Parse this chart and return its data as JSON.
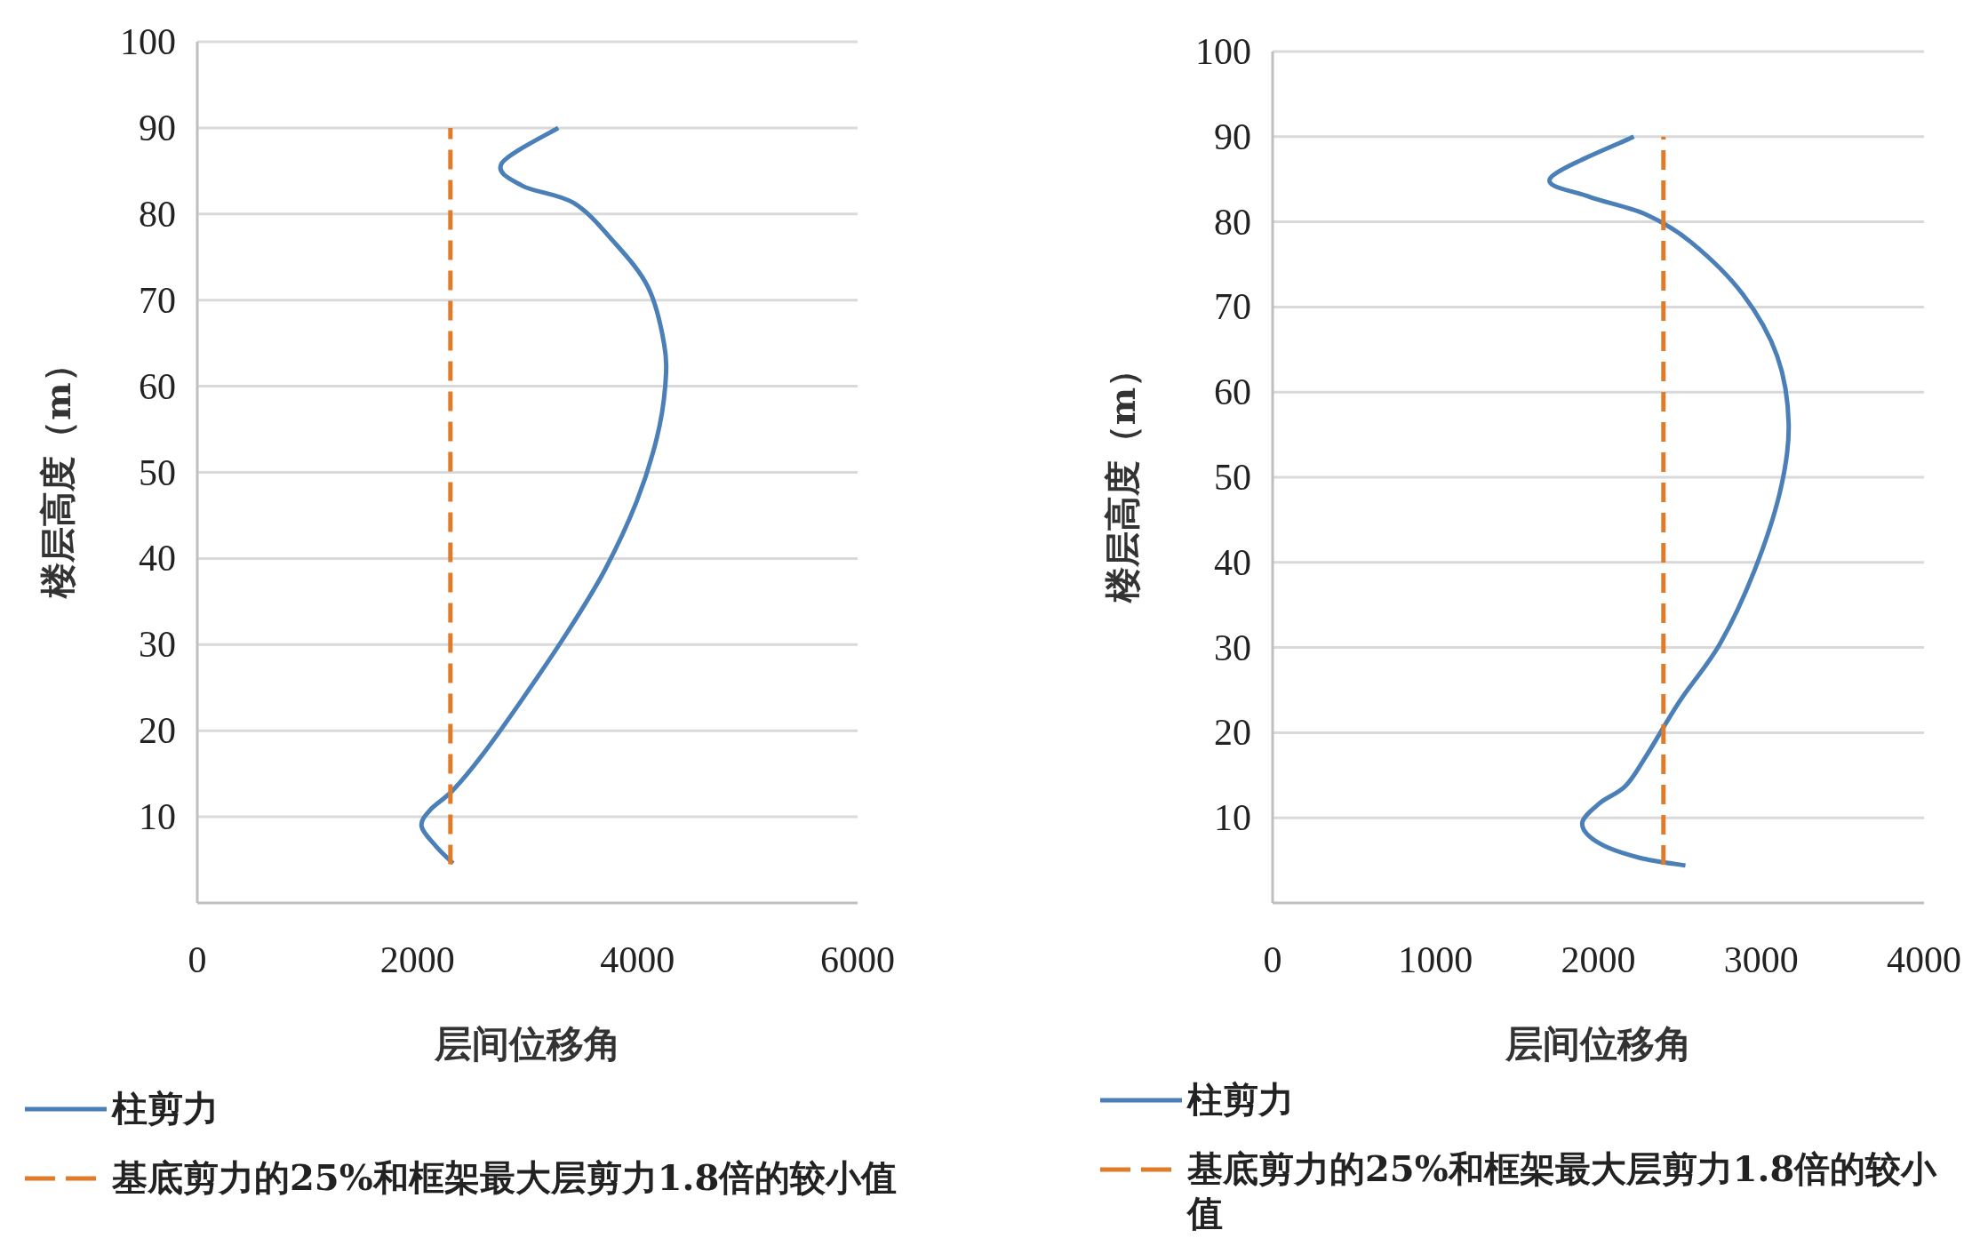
{
  "chart_data": [
    {
      "type": "line",
      "xlabel": "层间位移角",
      "ylabel": "楼层高度（m）",
      "xlim": [
        0,
        6000
      ],
      "xticks": [
        0,
        2000,
        4000,
        6000
      ],
      "ylim": [
        0,
        100
      ],
      "yticks": [
        10,
        20,
        30,
        40,
        50,
        60,
        70,
        80,
        90,
        100
      ],
      "grid": "y",
      "legend": "bottom",
      "series": [
        {
          "name": "柱剪力",
          "color": "#4a7fb8",
          "x": [
            3280,
            2767,
            2950,
            3418,
            3783,
            4096,
            4242,
            4252,
            4174,
            3992,
            3705,
            3366,
            2950,
            2585,
            2324,
            2116,
            2038,
            2168,
            2324
          ],
          "values": [
            90,
            85.9,
            83.3,
            81.3,
            76.8,
            71.5,
            64.9,
            60,
            53.9,
            46.6,
            38.7,
            31.5,
            23.6,
            17.1,
            13.1,
            10.8,
            8.9,
            6.6,
            4.6
          ]
        },
        {
          "name": "基底剪力的25%和框架最大层剪力1.8倍的较小值",
          "color": "#e07b2a",
          "line_style": "dashed",
          "x": [
            2300,
            2300
          ],
          "values": [
            4.5,
            90
          ]
        }
      ]
    },
    {
      "type": "line",
      "xlabel": "层间位移角",
      "ylabel": "楼层高度（m）",
      "xlim": [
        0,
        4000
      ],
      "xticks": [
        0,
        1000,
        2000,
        3000,
        4000
      ],
      "ylim": [
        0,
        100
      ],
      "yticks": [
        10,
        20,
        30,
        40,
        50,
        60,
        70,
        80,
        90,
        100
      ],
      "grid": "y",
      "legend": "bottom",
      "series": [
        {
          "name": "柱剪力",
          "color": "#4a7fb8",
          "x": [
            2218,
            1708,
            1937,
            2289,
            2570,
            2887,
            3099,
            3169,
            3116,
            2958,
            2746,
            2500,
            2289,
            2165,
            2007,
            1901,
            2007,
            2254,
            2535
          ],
          "values": [
            90,
            85.2,
            83,
            80.9,
            77.6,
            71.5,
            64.2,
            56.2,
            48.3,
            39,
            30.4,
            23.7,
            17.1,
            13.7,
            11.7,
            9.3,
            7,
            5.3,
            4.4
          ]
        },
        {
          "name": "基底剪力的25%和框架最大层剪力1.8倍的较小值",
          "color": "#e07b2a",
          "line_style": "dashed",
          "x": [
            2400,
            2400
          ],
          "values": [
            4.5,
            90
          ]
        }
      ]
    }
  ]
}
